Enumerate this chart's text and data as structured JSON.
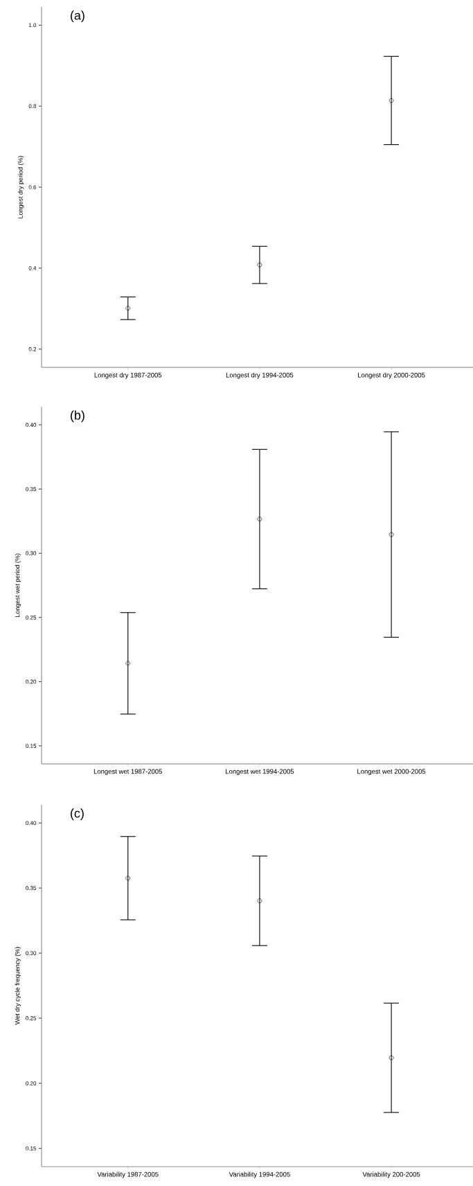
{
  "chart_data": [
    {
      "type": "scatter",
      "title": "(a)",
      "ylabel": "Longest dry period (%)",
      "categories": [
        "Longest dry 1987-2005",
        "Longest dry 1994-2005",
        "Longest dry 2000-2005"
      ],
      "values": [
        0.301,
        0.408,
        0.814
      ],
      "errors": [
        0.028,
        0.046,
        0.109
      ],
      "color": "#000000",
      "marker": "circle",
      "ylim": [
        0.155,
        1.045
      ],
      "yticks": [
        {
          "value": 0.2,
          "label": "0.2"
        },
        {
          "value": 0.4,
          "label": "0.4"
        },
        {
          "value": 0.6,
          "label": "0.6"
        },
        {
          "value": 0.8,
          "label": "0.8"
        },
        {
          "value": 1.0,
          "label": "1.0"
        }
      ]
    },
    {
      "type": "scatter",
      "title": "(b)",
      "ylabel": "Longest wet period (%)",
      "categories": [
        "Longest wet 1987-2005",
        "Longest wet 1994-2005",
        "Longest wet 2000-2005"
      ],
      "values": [
        0.2143,
        0.3266,
        0.3146
      ],
      "errors": [
        0.0395,
        0.0543,
        0.08
      ],
      "color": "#000000",
      "marker": "circle",
      "ylim": [
        0.136,
        0.414
      ],
      "yticks": [
        {
          "value": 0.15,
          "label": "0.15"
        },
        {
          "value": 0.2,
          "label": "0.20"
        },
        {
          "value": 0.25,
          "label": "0.25"
        },
        {
          "value": 0.3,
          "label": "0.30"
        },
        {
          "value": 0.35,
          "label": "0.35"
        },
        {
          "value": 0.4,
          "label": "0.40"
        }
      ]
    },
    {
      "type": "scatter",
      "title": "(c)",
      "ylabel": "Wet dry cycle frequency (%)",
      "categories": [
        "Variability 1987-2005",
        "Variability 1994-2005",
        "Variability 200-2005"
      ],
      "values": [
        0.3576,
        0.3402,
        0.2196
      ],
      "errors": [
        0.032,
        0.0344,
        0.042
      ],
      "color": "#000000",
      "marker": "circle",
      "ylim": [
        0.136,
        0.414
      ],
      "yticks": [
        {
          "value": 0.15,
          "label": "0.15"
        },
        {
          "value": 0.2,
          "label": "0.20"
        },
        {
          "value": 0.25,
          "label": "0.25"
        },
        {
          "value": 0.3,
          "label": "0.30"
        },
        {
          "value": 0.35,
          "label": "0.35"
        },
        {
          "value": 0.4,
          "label": "0.40"
        }
      ]
    }
  ]
}
